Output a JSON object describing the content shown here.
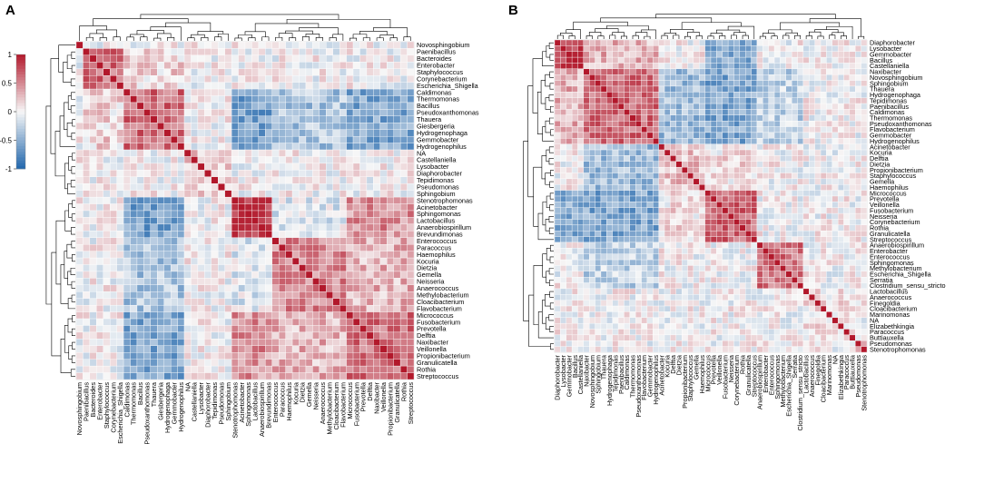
{
  "colors": {
    "neg": "#2166ac",
    "mid": "#f7f7f7",
    "pos": "#b2182b",
    "grid": "#ffffff"
  },
  "colorbar": {
    "ticks": [
      "1",
      "0.5",
      "0",
      "-0.5",
      "-1"
    ],
    "range": [
      -1,
      1
    ]
  },
  "chart_data": [
    {
      "type": "heatmap",
      "panel": "A",
      "title": "",
      "value_range": [
        -1,
        1
      ],
      "row_dendrogram": true,
      "column_dendrogram": true,
      "labels": [
        "Novosphingobium",
        "Paenibacillus",
        "Bacteroides",
        "Enterobacter",
        "Staphylococcus",
        "Corynebacterium",
        "Escherichia_Shigella",
        "Caldimonas",
        "Thermomonas",
        "Bacillus",
        "Pseudoxanthomonas",
        "Thauera",
        "Giesbergeria",
        "Hydrogenophaga",
        "Gemmobacter",
        "Hydrogenophilus",
        "NA",
        "Castellaniella",
        "Lysobacter",
        "Diaphorobacter",
        "Tepidimonas",
        "Pseudomonas",
        "Sphingobium",
        "Stenotrophomonas",
        "Acinetobacter",
        "Sphingomonas",
        "Lactobacillus",
        "Anaerobiospirillum",
        "Brevundimonas",
        "Enterococcus",
        "Paracoccus",
        "Haemophilus",
        "Kocuria",
        "Dietzia",
        "Gemella",
        "Neisseria",
        "Anaerococcus",
        "Methylobacterium",
        "Cloacibacterium",
        "Flavobacterium",
        "Micrococcus",
        "Fusobacterium",
        "Prevotella",
        "Delftia",
        "Naxibacter",
        "Veillonella",
        "Propionibacterium",
        "Granulicatella",
        "Rothia",
        "Streptococcus"
      ],
      "clusters": [
        {
          "start": 0,
          "end": 1,
          "within": 0.45
        },
        {
          "start": 1,
          "end": 7,
          "within": 0.6
        },
        {
          "start": 7,
          "end": 16,
          "within": 0.62
        },
        {
          "start": 16,
          "end": 23,
          "within": 0.2
        },
        {
          "start": 23,
          "end": 29,
          "within": 0.85
        },
        {
          "start": 29,
          "end": 40,
          "within": 0.5
        },
        {
          "start": 40,
          "end": 50,
          "within": 0.6
        }
      ],
      "cluster_relations": [
        {
          "a": 2,
          "b": 4,
          "value": -0.6
        },
        {
          "a": 2,
          "b": 6,
          "value": -0.55
        },
        {
          "a": 2,
          "b": 5,
          "value": -0.35
        },
        {
          "a": 4,
          "b": 6,
          "value": 0.45
        },
        {
          "a": 5,
          "b": 6,
          "value": 0.3
        },
        {
          "a": 1,
          "b": 2,
          "value": 0.15
        },
        {
          "a": 4,
          "b": 5,
          "value": -0.1
        }
      ]
    },
    {
      "type": "heatmap",
      "panel": "B",
      "title": "",
      "value_range": [
        -1,
        1
      ],
      "row_dendrogram": true,
      "column_dendrogram": true,
      "labels": [
        "Diaphorobacter",
        "Lysobacter",
        "Gemmobacter",
        "Bacillus",
        "Castellaniella",
        "Naxibacter",
        "Novosphingobium",
        "Sphingobium",
        "Thauera",
        "Hydrogenophaga",
        "Tepidimonas",
        "Paenibacillus",
        "Caldimonas",
        "Thermomonas",
        "Pseudoxanthomonas",
        "Flavobacterium",
        "Gemmobacter",
        "Hydrogenophilus",
        "Acinetobacter",
        "Kocuria",
        "Delftia",
        "Dietzia",
        "Propionibacterium",
        "Staphylococcus",
        "Gemella",
        "Haemophilus",
        "Micrococcus",
        "Prevotella",
        "Veillonella",
        "Fusobacterium",
        "Neisseria",
        "Corynebacterium",
        "Rothia",
        "Granulicatella",
        "Streptococcus",
        "Anaerobiospirillum",
        "Enterobacter",
        "Enterococcus",
        "Sphingomonas",
        "Methylobacterium",
        "Escherichia_Shigella",
        "Serratia",
        "Clostridium_sensu_stricto",
        "Lactobacillus",
        "Anaerococcus",
        "Finegoldia",
        "Cloacibacterium",
        "Marinomonas",
        "NA",
        "Elizabethkingia",
        "Paracoccus",
        "Buttiauxella",
        "Pseudomonas",
        "Stenotrophomonas"
      ],
      "clusters": [
        {
          "start": 0,
          "end": 5,
          "within": 0.8
        },
        {
          "start": 5,
          "end": 18,
          "within": 0.62
        },
        {
          "start": 18,
          "end": 26,
          "within": 0.25
        },
        {
          "start": 26,
          "end": 35,
          "within": 0.65
        },
        {
          "start": 35,
          "end": 43,
          "within": 0.6
        },
        {
          "start": 43,
          "end": 52,
          "within": 0.1
        },
        {
          "start": 52,
          "end": 54,
          "within": 0.5
        }
      ],
      "cluster_relations": [
        {
          "a": 0,
          "b": 1,
          "value": 0.3
        },
        {
          "a": 1,
          "b": 2,
          "value": -0.4
        },
        {
          "a": 1,
          "b": 3,
          "value": -0.55
        },
        {
          "a": 0,
          "b": 3,
          "value": -0.5
        },
        {
          "a": 1,
          "b": 4,
          "value": -0.25
        },
        {
          "a": 2,
          "b": 3,
          "value": 0.1
        }
      ]
    }
  ]
}
